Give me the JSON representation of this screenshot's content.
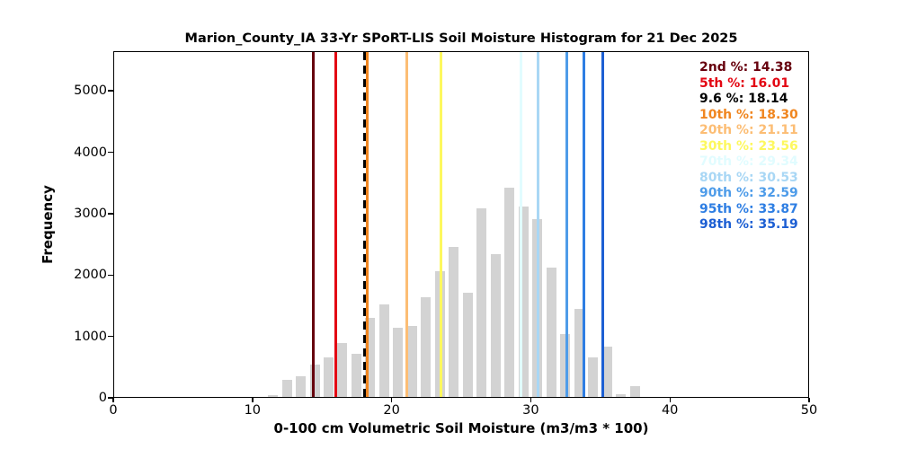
{
  "figure": {
    "title": "Marion_County_IA 33-Yr SPoRT-LIS Soil Moisture Histogram for 21 Dec 2025",
    "xlabel": "0-100 cm Volumetric Soil Moisture (m3/m3 * 100)",
    "ylabel": "Frequency",
    "background": "#ffffff"
  },
  "chart_data": {
    "type": "bar",
    "title": "Marion_County_IA 33-Yr SPoRT-LIS Soil Moisture Histogram for 21 Dec 2025",
    "xlabel": "0-100 cm Volumetric Soil Moisture (m3/m3 * 100)",
    "ylabel": "Frequency",
    "xlim": [
      0,
      50
    ],
    "ylim": [
      0,
      5645
    ],
    "xticks": [
      0,
      10,
      20,
      30,
      40,
      50
    ],
    "yticks": [
      0,
      1000,
      2000,
      3000,
      4000,
      5000
    ],
    "grid": false,
    "bar_color": "#d3d3d3",
    "bin_width_units": 0.71,
    "bin_centers": [
      11.5,
      12.5,
      13.5,
      14.5,
      15.5,
      16.5,
      17.5,
      18.5,
      19.5,
      20.5,
      21.5,
      22.5,
      23.5,
      24.5,
      25.5,
      26.5,
      27.5,
      28.5,
      29.5,
      30.5,
      31.5,
      32.5,
      33.5,
      34.5,
      35.5,
      36.5,
      37.5
    ],
    "frequencies": [
      30,
      280,
      330,
      520,
      640,
      875,
      700,
      1290,
      1500,
      1130,
      1150,
      1630,
      2050,
      2450,
      1700,
      3070,
      2330,
      3410,
      3100,
      2900,
      2100,
      1030,
      1440,
      640,
      815,
      50,
      180
    ],
    "legend_position": "upper right",
    "percentile_lines": [
      {
        "label": "2nd %",
        "value": 14.38,
        "display": "2nd %: 14.38",
        "color": "#67000d",
        "dashed": false
      },
      {
        "label": "5th %",
        "value": 16.01,
        "display": "5th %: 16.01",
        "color": "#e30613",
        "dashed": false
      },
      {
        "label": "9.6 %",
        "value": 18.14,
        "display": "9.6 %: 18.14",
        "color": "#000000",
        "dashed": true
      },
      {
        "label": "10th %",
        "value": 18.3,
        "display": "10th %: 18.30",
        "color": "#f08620",
        "dashed": false
      },
      {
        "label": "20th %",
        "value": 21.11,
        "display": "20th %: 21.11",
        "color": "#fcbd74",
        "dashed": false
      },
      {
        "label": "30th %",
        "value": 23.56,
        "display": "30th %: 23.56",
        "color": "#fdf85e",
        "dashed": false
      },
      {
        "label": "70th %",
        "value": 29.34,
        "display": "70th %: 29.34",
        "color": "#e1fcff",
        "dashed": false
      },
      {
        "label": "80th %",
        "value": 30.53,
        "display": "80th %: 30.53",
        "color": "#a9d7f5",
        "dashed": false
      },
      {
        "label": "90th %",
        "value": 32.59,
        "display": "90th %: 32.59",
        "color": "#4e9ce9",
        "dashed": false
      },
      {
        "label": "95th %",
        "value": 33.87,
        "display": "95th %: 33.87",
        "color": "#2e7ee3",
        "dashed": false
      },
      {
        "label": "98th %",
        "value": 35.19,
        "display": "98th %: 35.19",
        "color": "#1d5fd3",
        "dashed": false
      }
    ]
  }
}
